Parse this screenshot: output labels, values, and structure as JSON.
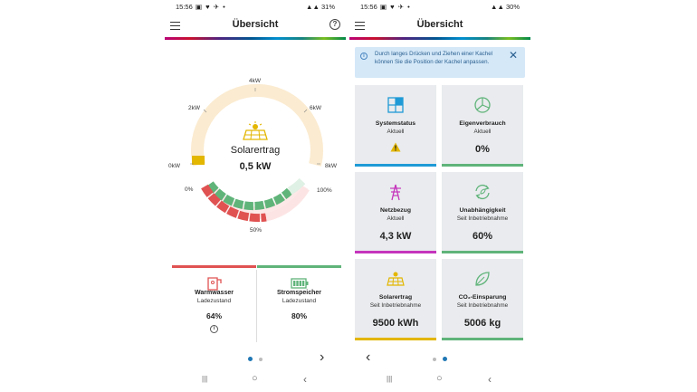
{
  "colors": {
    "solar_yellow": "#e3b600",
    "green": "#60b47a",
    "red": "#e05252",
    "blue": "#1f9ad6",
    "magenta": "#c535bc",
    "dot_active": "#1f77b4",
    "dot_inactive": "#bbbbbb"
  },
  "left": {
    "status": {
      "time": "15:56",
      "battery": "31%",
      "icons": "▣ ♥ ✈ •"
    },
    "appbar": {
      "title": "Übersicht",
      "menu_icon": "menu-icon",
      "help_icon": "help-icon",
      "help": "?"
    },
    "gauge": {
      "labels": {
        "l0": "0kW",
        "l2": "2kW",
        "l4": "4kW",
        "l6": "6kW",
        "l8": "8kW"
      },
      "center_title": "Solarertrag",
      "center_value": "0,5 kW",
      "value_fraction": 0.06,
      "lower": {
        "p0": "0%",
        "p50": "50%",
        "p100": "100%"
      }
    },
    "tiles": [
      {
        "name": "Warmwasser",
        "sub": "Ladezustand",
        "value": "64%",
        "icon": "water-heater-icon",
        "bar": "#e05252",
        "info": "i"
      },
      {
        "name": "Stromspeicher",
        "sub": "Ladezustand",
        "value": "80%",
        "icon": "battery-icon",
        "bar": "#60b47a"
      }
    ],
    "pager": "›"
  },
  "right": {
    "status": {
      "time": "15:56",
      "battery": "30%",
      "icons": "▣ ♥ ✈ •"
    },
    "appbar": {
      "title": "Übersicht"
    },
    "banner": {
      "text": "Durch langes Drücken und Ziehen einer Kachel können Sie die Position der Kachel anpassen.",
      "info": "i",
      "close": "✕"
    },
    "tiles": [
      {
        "name": "Systemstatus",
        "sub": "Aktuell",
        "value": "",
        "icon": "dashboard-icon",
        "bar": "#1f9ad6"
      },
      {
        "name": "Eigenverbrauch",
        "sub": "Aktuell",
        "value": "0%",
        "icon": "pie-chart-icon",
        "bar": "#60b47a"
      },
      {
        "name": "Netzbezug",
        "sub": "Aktuell",
        "value": "4,3 kW",
        "icon": "power-tower-icon",
        "bar": "#c535bc"
      },
      {
        "name": "Unabhängigkeit",
        "sub": "Seit Inbetriebnahme",
        "value": "60%",
        "icon": "recycle-leaf-icon",
        "bar": "#60b47a"
      },
      {
        "name": "Solarertrag",
        "sub": "Seit Inbetriebnahme",
        "value": "9500 kWh",
        "icon": "solar-panel-icon",
        "bar": "#e3b600"
      },
      {
        "name": "CO₂-Einsparung",
        "sub": "Seit Inbetriebnahme",
        "value": "5006 kg",
        "icon": "leaf-icon",
        "bar": "#60b47a"
      }
    ],
    "pager": "‹"
  },
  "navbar": {
    "recent": "|||",
    "home": "○",
    "back": "‹"
  }
}
